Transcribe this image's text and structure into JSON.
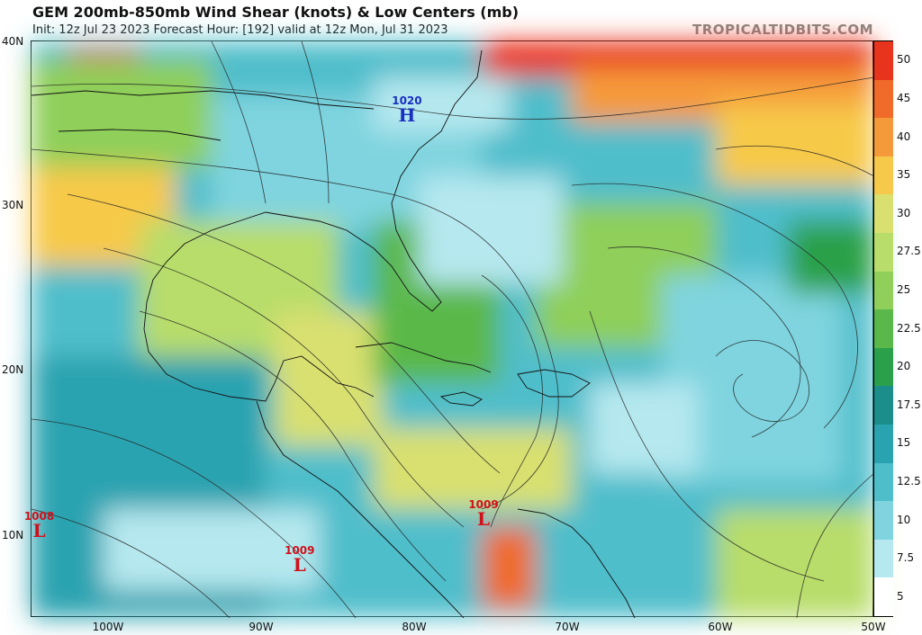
{
  "header": {
    "title": "GEM 200mb-850mb Wind Shear (knots) & Low Centers (mb)",
    "subtitle": "Init: 12z Jul 23 2023   Forecast Hour: [192]   valid at 12z Mon, Jul 31 2023",
    "credit": "TROPICALTIDBITS.COM"
  },
  "axes": {
    "lat_labels": [
      "40N",
      "30N",
      "20N",
      "10N"
    ],
    "lon_labels": [
      "100W",
      "90W",
      "80W",
      "70W",
      "60W",
      "50W"
    ]
  },
  "colorbar": {
    "labels": [
      "50",
      "45",
      "40",
      "35",
      "30",
      "27.5",
      "25",
      "22.5",
      "20",
      "17.5",
      "15",
      "12.5",
      "10",
      "7.5",
      "5"
    ],
    "colors": [
      "#e8331d",
      "#f06a2a",
      "#f59a3a",
      "#f7c94a",
      "#d9e070",
      "#b8dd6a",
      "#8fcf5a",
      "#5ab84a",
      "#2aa04a",
      "#1b8e8c",
      "#2aa3b0",
      "#4fbecb",
      "#7fd4df",
      "#b6e8ef",
      "#ffffff"
    ]
  },
  "centers": [
    {
      "type": "H",
      "value": "1020",
      "lon": -80.5,
      "lat": 35.5
    },
    {
      "type": "L",
      "value": "1008",
      "lon": -104.5,
      "lat": 10.3
    },
    {
      "type": "L",
      "value": "1009",
      "lon": -87.5,
      "lat": 8.2
    },
    {
      "type": "L",
      "value": "1009",
      "lon": -75.5,
      "lat": 11.0
    }
  ]
}
